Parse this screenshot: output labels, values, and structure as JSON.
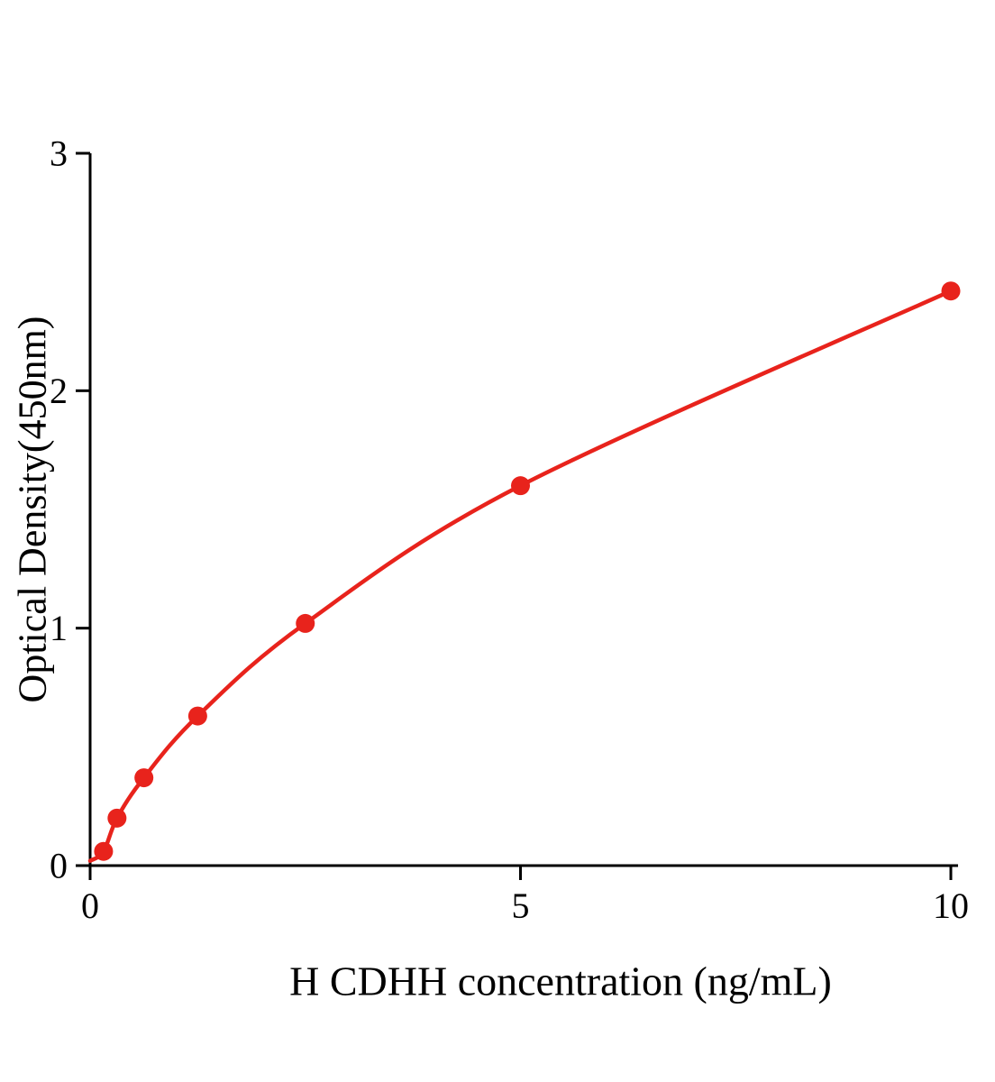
{
  "chart_data": {
    "type": "scatter",
    "title": "",
    "xlabel": "H CDHH concentration (ng/mL)",
    "ylabel": "Optical Density(450nm)",
    "x": [
      0.156,
      0.3125,
      0.625,
      1.25,
      2.5,
      5,
      10
    ],
    "y": [
      0.06,
      0.2,
      0.37,
      0.63,
      1.02,
      1.6,
      2.42
    ],
    "curve_start": [
      0,
      0.02
    ],
    "xticks": [
      0,
      5,
      10
    ],
    "yticks": [
      0,
      1,
      2,
      3
    ],
    "xlim": [
      0,
      10
    ],
    "ylim": [
      0,
      3
    ],
    "grid": false,
    "legend_position": "none",
    "marker": "circle",
    "line_style": "smooth-fit-curve",
    "series_color": "#e8231c",
    "axis_color": "#000000",
    "tick_label_color": "#000000"
  }
}
